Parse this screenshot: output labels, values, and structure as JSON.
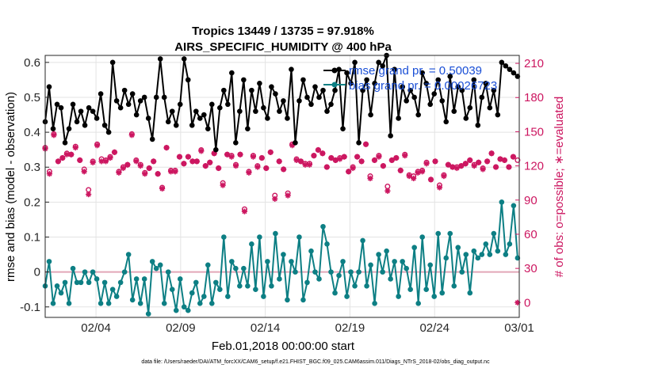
{
  "chart_data": {
    "type": "line",
    "title": "Tropics 13449 / 13735 = 97.918%",
    "subtitle": "AIRS_SPECIFIC_HUMIDITY @ 400 hPa",
    "xlabel": "Feb.01,2018 00:00:00 start",
    "ylabel_left": "rmse and bias (model - observation)",
    "ylabel_right": "# of obs: o=possible; ∗=evaluated",
    "footer": "data file: /Users/raeder/DAI/ATM_forcXX/CAM6_setup/f.e21.FHIST_BGC.f09_025.CAM6assim.011/Diags_NTrS_2018-02/obs_diag_output.nc",
    "xlim": [
      0,
      28
    ],
    "ylim_left": [
      -0.13,
      0.62
    ],
    "ylim_right": [
      -13,
      217
    ],
    "grid": true,
    "x_ticks": [
      {
        "pos": 3,
        "label": "02/04"
      },
      {
        "pos": 8,
        "label": "02/09"
      },
      {
        "pos": 13,
        "label": "02/14"
      },
      {
        "pos": 18,
        "label": "02/19"
      },
      {
        "pos": 23,
        "label": "02/24"
      },
      {
        "pos": 28,
        "label": "03/01"
      }
    ],
    "y_ticks_left": [
      {
        "value": -0.1,
        "label": "-0.1"
      },
      {
        "value": 0,
        "label": "0"
      },
      {
        "value": 0.1,
        "label": "0.1"
      },
      {
        "value": 0.2,
        "label": "0.2"
      },
      {
        "value": 0.3,
        "label": "0.3"
      },
      {
        "value": 0.4,
        "label": "0.4"
      },
      {
        "value": 0.5,
        "label": "0.5"
      },
      {
        "value": 0.6,
        "label": "0.6"
      }
    ],
    "y_ticks_right": [
      {
        "value": 0,
        "label": "0"
      },
      {
        "value": 30,
        "label": "30"
      },
      {
        "value": 60,
        "label": "60"
      },
      {
        "value": 90,
        "label": "90"
      },
      {
        "value": 120,
        "label": "120"
      },
      {
        "value": 150,
        "label": "150"
      },
      {
        "value": 180,
        "label": "180"
      },
      {
        "value": 210,
        "label": "210"
      }
    ],
    "legend": [
      {
        "name": "rmse",
        "text": "rmse grand pr. = 0.50039",
        "color": "#000000"
      },
      {
        "name": "bias",
        "text": "bias grand pr. = 0.00026723",
        "color": "#0d7f84"
      }
    ],
    "legend_position": "top-right",
    "series": [
      {
        "name": "rmse",
        "axis": "left",
        "color": "#000000",
        "marker": "filled-circle",
        "values": [
          0.43,
          0.53,
          0.41,
          0.48,
          0.47,
          0.37,
          0.41,
          0.48,
          0.43,
          0.46,
          0.42,
          0.47,
          0.46,
          0.44,
          0.51,
          0.42,
          0.4,
          0.6,
          0.49,
          0.47,
          0.52,
          0.48,
          0.51,
          0.45,
          0.49,
          0.5,
          0.44,
          0.38,
          0.5,
          0.61,
          0.5,
          0.43,
          0.46,
          0.42,
          0.48,
          0.61,
          0.55,
          0.42,
          0.46,
          0.44,
          0.45,
          0.41,
          0.48,
          0.35,
          0.47,
          0.52,
          0.48,
          0.57,
          0.37,
          0.46,
          0.55,
          0.41,
          0.52,
          0.46,
          0.54,
          0.47,
          0.44,
          0.53,
          0.51,
          0.46,
          0.49,
          0.44,
          0.58,
          0.37,
          0.49,
          0.55,
          0.5,
          0.48,
          0.53,
          0.5,
          0.52,
          0.46,
          0.48,
          0.52,
          0.58,
          0.41,
          0.57,
          0.54,
          0.6,
          0.37,
          0.52,
          0.55,
          0.45,
          0.54,
          0.6,
          0.59,
          0.62,
          0.39,
          0.58,
          0.44,
          0.53,
          0.49,
          0.52,
          0.5,
          0.45,
          0.57,
          0.54,
          0.48,
          0.51,
          0.55,
          0.49,
          0.43,
          0.56,
          0.46,
          0.53,
          0.52,
          0.44,
          0.47,
          0.55,
          0.42,
          0.5,
          0.54,
          0.47,
          0.52,
          0.45,
          0.6,
          0.59,
          0.58,
          0.57,
          0.56
        ],
        "x_end": 27.9
      },
      {
        "name": "bias",
        "axis": "left",
        "color": "#0d7f84",
        "marker": "filled-circle",
        "values": [
          -0.04,
          0.03,
          -0.09,
          -0.04,
          -0.06,
          -0.03,
          -0.09,
          0.01,
          -0.03,
          -0.03,
          0.0,
          -0.03,
          0.0,
          -0.02,
          -0.09,
          -0.03,
          -0.09,
          -0.05,
          -0.07,
          -0.03,
          0.0,
          0.05,
          -0.08,
          -0.02,
          -0.09,
          -0.02,
          -0.12,
          0.03,
          0.01,
          0.02,
          -0.09,
          0.0,
          -0.05,
          -0.11,
          -0.02,
          -0.1,
          -0.11,
          -0.06,
          -0.03,
          -0.09,
          -0.07,
          0.02,
          -0.09,
          -0.03,
          -0.05,
          0.1,
          -0.07,
          0.03,
          0.01,
          -0.04,
          0.01,
          -0.04,
          0.08,
          -0.05,
          0.1,
          -0.07,
          0.03,
          -0.04,
          0.11,
          -0.02,
          0.05,
          -0.08,
          0.03,
          0.0,
          0.1,
          -0.08,
          -0.03,
          0.06,
          0.0,
          -0.02,
          0.13,
          0.08,
          0.0,
          -0.06,
          -0.01,
          0.03,
          -0.07,
          0.0,
          -0.04,
          0.0,
          0.09,
          -0.04,
          0.02,
          -0.09,
          0.05,
          0.0,
          0.06,
          -0.02,
          0.03,
          -0.07,
          0.03,
          0.01,
          -0.05,
          0.07,
          -0.09,
          0.1,
          -0.05,
          0.02,
          -0.07,
          0.11,
          -0.06,
          0.04,
          0.11,
          -0.04,
          0.07,
          0.0,
          0.05,
          -0.06,
          0.06,
          0.04,
          0.05,
          0.08,
          0.05,
          0.11,
          0.06,
          0.2,
          0.05,
          0.08,
          0.19,
          0.04
        ],
        "x_end": 27.9
      },
      {
        "name": "obs possible",
        "axis": "right",
        "color": "#cc1660",
        "marker": "open-circle",
        "values": [
          136,
          115,
          148,
          124,
          127,
          131,
          130,
          137,
          125,
          117,
          99,
          124,
          139,
          126,
          125,
          128,
          132,
          115,
          119,
          121,
          148,
          125,
          121,
          114,
          118,
          124,
          113,
          101,
          136,
          116,
          116,
          128,
          122,
          128,
          124,
          124,
          134,
          120,
          123,
          131,
          118,
          105,
          130,
          129,
          121,
          130,
          82,
          115,
          129,
          120,
          127,
          118,
          132,
          94,
          124,
          117,
          96,
          139,
          126,
          124,
          122,
          122,
          129,
          134,
          131,
          119,
          127,
          125,
          127,
          128,
          115,
          119,
          128,
          124,
          139,
          111,
          125,
          129,
          120,
          102,
          125,
          127,
          116,
          130,
          112,
          111,
          115,
          116,
          123,
          108,
          124,
          103,
          112,
          121,
          119,
          119,
          120,
          122,
          125,
          121,
          123,
          118,
          124,
          131,
          119,
          126,
          125,
          119,
          128,
          125
        ],
        "x_end": 27.9
      },
      {
        "name": "obs evaluated",
        "axis": "right",
        "color": "#cc1660",
        "marker": "asterisk",
        "values": [
          135,
          113,
          147,
          124,
          127,
          130,
          130,
          136,
          125,
          115,
          95,
          123,
          138,
          124,
          124,
          127,
          132,
          114,
          118,
          121,
          147,
          124,
          120,
          113,
          118,
          124,
          113,
          100,
          136,
          115,
          115,
          128,
          122,
          128,
          124,
          124,
          133,
          120,
          123,
          131,
          118,
          103,
          130,
          128,
          120,
          130,
          80,
          114,
          128,
          119,
          127,
          118,
          132,
          91,
          124,
          117,
          94,
          138,
          125,
          124,
          121,
          121,
          129,
          134,
          131,
          119,
          127,
          125,
          126,
          128,
          115,
          118,
          128,
          124,
          139,
          109,
          125,
          128,
          120,
          98,
          125,
          127,
          116,
          129,
          111,
          109,
          114,
          115,
          122,
          108,
          124,
          101,
          111,
          121,
          119,
          118,
          120,
          122,
          125,
          120,
          123,
          117,
          124,
          131,
          119,
          126,
          125,
          119,
          128,
          0
        ],
        "x_end": 27.9
      }
    ],
    "reference_line": {
      "axis": "left",
      "value": 0,
      "color": "#e2a6b8"
    }
  }
}
